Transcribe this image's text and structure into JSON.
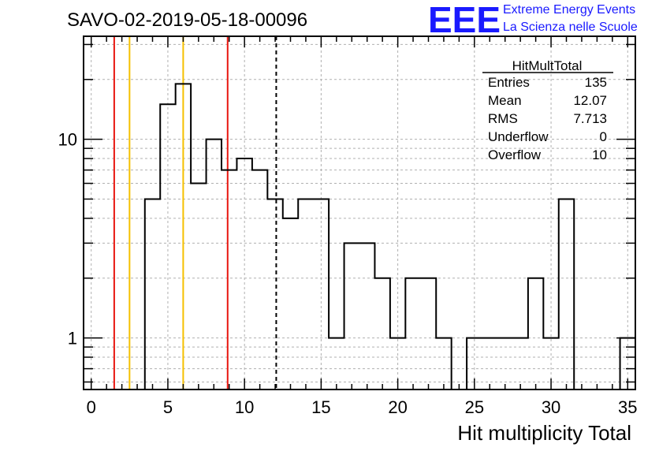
{
  "title": "SAVO-02-2019-05-18-00096",
  "logo": {
    "text": "EEE",
    "line1": "Extreme Energy Events",
    "line2": "La Scienza nelle Scuole"
  },
  "stats": {
    "name": "HitMultTotal",
    "rows": [
      {
        "label": "Entries",
        "value": "135"
      },
      {
        "label": "Mean",
        "value": "12.07"
      },
      {
        "label": "RMS",
        "value": "7.713"
      },
      {
        "label": "Underflow",
        "value": "0"
      },
      {
        "label": "Overflow",
        "value": "10"
      }
    ]
  },
  "chart_data": {
    "type": "bar",
    "histogram": true,
    "xlabel": "Hit multiplicity Total",
    "ylabel": "",
    "xlim": [
      -0.5,
      35.5
    ],
    "ylim": [
      0.55,
      33
    ],
    "ylog": true,
    "grid": true,
    "bin_edges": [
      -0.5,
      35.5
    ],
    "bin_width": 1,
    "x": [
      0,
      1,
      2,
      3,
      4,
      5,
      6,
      7,
      8,
      9,
      10,
      11,
      12,
      13,
      14,
      15,
      16,
      17,
      18,
      19,
      20,
      21,
      22,
      23,
      24,
      25,
      26,
      27,
      28,
      29,
      30,
      31,
      32,
      33,
      34,
      35
    ],
    "values": [
      0,
      0,
      0,
      0,
      5,
      15,
      19,
      6,
      10,
      7,
      8,
      7,
      5,
      4,
      5,
      5,
      1,
      3,
      3,
      2,
      1,
      2,
      2,
      1,
      0,
      1,
      1,
      1,
      1,
      2,
      1,
      5,
      0,
      0,
      0,
      1
    ],
    "xticks": [
      0,
      5,
      10,
      15,
      20,
      25,
      30,
      35
    ],
    "yticks": [
      1,
      10
    ],
    "ytick_labels": [
      "1",
      "10"
    ],
    "vertical_lines": [
      {
        "x": 1.5,
        "color": "#e8160f",
        "style": "solid"
      },
      {
        "x": 2.5,
        "color": "#f5c000",
        "style": "solid"
      },
      {
        "x": 6.0,
        "color": "#f5c000",
        "style": "solid"
      },
      {
        "x": 8.9,
        "color": "#e8160f",
        "style": "solid"
      },
      {
        "x": 12.07,
        "color": "#000000",
        "style": "dashed"
      }
    ]
  }
}
